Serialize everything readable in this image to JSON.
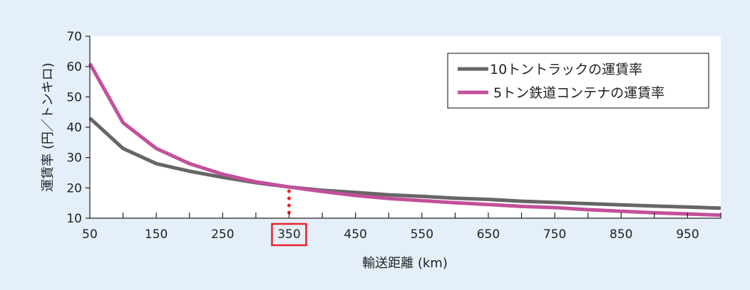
{
  "chart_data": {
    "type": "line",
    "xlabel": "輸送距離 (km)",
    "ylabel": "運賃率 (円／トンキロ)",
    "xlim": [
      50,
      1000
    ],
    "ylim": [
      10,
      70
    ],
    "x_ticks": [
      50,
      150,
      250,
      350,
      450,
      550,
      650,
      750,
      850,
      950
    ],
    "y_ticks": [
      10,
      20,
      30,
      40,
      50,
      60,
      70
    ],
    "highlight": {
      "x": 350,
      "label": "350",
      "color": "#e8232b"
    },
    "grid": false,
    "legend_position": "top-right",
    "series": [
      {
        "name": "10トントラックの運賃率",
        "color": "#666666",
        "x": [
          50,
          100,
          150,
          200,
          250,
          300,
          350,
          400,
          450,
          500,
          550,
          600,
          650,
          700,
          750,
          800,
          850,
          900,
          950,
          1000
        ],
        "values": [
          43,
          33,
          28,
          25.5,
          23.5,
          21.7,
          20.3,
          19.2,
          18.5,
          17.7,
          17.2,
          16.6,
          16.2,
          15.6,
          15.2,
          14.8,
          14.4,
          14.0,
          13.7,
          13.3
        ]
      },
      {
        "name": "5トン鉄道コンテナの運賃率",
        "color": "#c2509b",
        "x": [
          50,
          100,
          150,
          200,
          250,
          300,
          350,
          400,
          450,
          500,
          550,
          600,
          650,
          700,
          750,
          800,
          850,
          900,
          950,
          1000
        ],
        "values": [
          61,
          41.5,
          33,
          28,
          24.5,
          22,
          20.3,
          18.8,
          17.5,
          16.5,
          15.8,
          15.1,
          14.5,
          13.9,
          13.5,
          12.8,
          12.3,
          11.8,
          11.4,
          11.0
        ]
      }
    ]
  }
}
